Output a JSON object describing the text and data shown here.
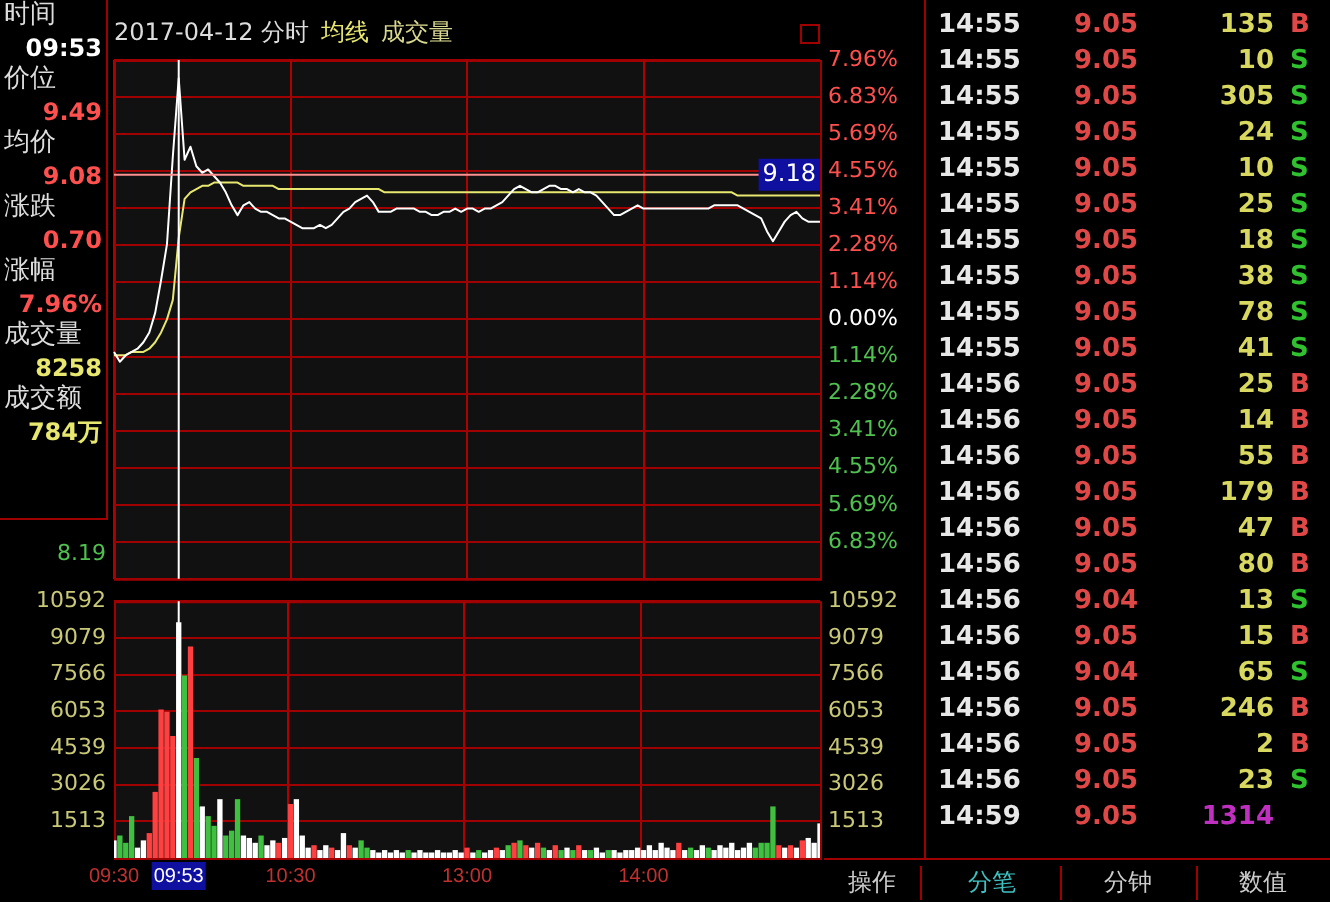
{
  "chart_data": [
    {
      "type": "other",
      "annotations": [
        "时间",
        "09:53",
        "价位",
        "9.49",
        "均价",
        "9.08",
        "涨跌",
        "0.70",
        "涨幅",
        "7.96%",
        "成交量",
        "8258",
        "成交额",
        "784万"
      ]
    },
    {
      "type": "line",
      "title": "2017-04-12 分时",
      "tick_labels": "y",
      "grid": true,
      "categories": [
        "09:30",
        null,
        null,
        null,
        null,
        null,
        null,
        null,
        null,
        null,
        null,
        "09:53",
        null,
        null,
        null,
        null,
        null,
        null,
        null,
        null,
        null,
        null,
        null,
        null,
        null,
        null,
        null,
        null,
        null,
        null,
        "10:30",
        null,
        null,
        null,
        null,
        null,
        null,
        null,
        null,
        null,
        null,
        null,
        null,
        null,
        null,
        null,
        null,
        null,
        null,
        null,
        null,
        null,
        null,
        null,
        null,
        null,
        null,
        null,
        null,
        null,
        "13:00",
        null,
        null,
        null,
        null,
        null,
        null,
        null,
        null,
        null,
        null,
        null,
        null,
        null,
        null,
        null,
        null,
        null,
        null,
        null,
        null,
        null,
        null,
        null,
        null,
        null,
        null,
        null,
        null,
        null,
        "14:00",
        null,
        null,
        null,
        null,
        null,
        null,
        null,
        null,
        null,
        null,
        null,
        null,
        null,
        null,
        null,
        null,
        null,
        null,
        null,
        null,
        null,
        null,
        null,
        null,
        null,
        null,
        null,
        null,
        null,
        null
      ],
      "ylim": [
        -7.96,
        7.96
      ],
      "yticks": [
        {
          "value": 7.96,
          "label": "7.96%"
        },
        {
          "value": 6.83,
          "label": "6.83%"
        },
        {
          "value": 5.69,
          "label": "5.69%"
        },
        {
          "value": 4.55,
          "label": "4.55%"
        },
        {
          "value": 3.41,
          "label": "3.41%"
        },
        {
          "value": 2.28,
          "label": "2.28%"
        },
        {
          "value": 1.14,
          "label": "1.14%"
        },
        {
          "value": 0,
          "label": "0.00%"
        },
        {
          "value": -1.14,
          "label": "1.14%"
        },
        {
          "value": -2.28,
          "label": "2.28%"
        },
        {
          "value": -3.41,
          "label": "3.41%"
        },
        {
          "value": -4.55,
          "label": "4.55%"
        },
        {
          "value": -5.69,
          "label": "5.69%"
        },
        {
          "value": -6.83,
          "label": "6.83%"
        },
        {
          "value": -7.96,
          "label": null
        }
      ],
      "ref_lines": [
        {
          "axis": "y",
          "value": 4.44,
          "color": "#ff9090"
        },
        {
          "axis": "x",
          "value": "09:53",
          "color": "#ffffff"
        }
      ],
      "annotations": [
        "9.18",
        "8.19",
        "成交量"
      ],
      "series": [
        {
          "color": "#ffffff",
          "values": [
            -1.0,
            -1.3,
            -1.1,
            -1.0,
            -0.9,
            -0.7,
            -0.4,
            0.2,
            1.2,
            2.3,
            5.0,
            7.4,
            4.9,
            5.3,
            4.7,
            4.5,
            4.6,
            4.4,
            4.2,
            3.9,
            3.5,
            3.2,
            3.5,
            3.6,
            3.4,
            3.3,
            3.3,
            3.2,
            3.1,
            3.1,
            3.0,
            2.9,
            2.8,
            2.8,
            2.8,
            2.9,
            2.8,
            2.9,
            3.1,
            3.3,
            3.4,
            3.6,
            3.7,
            3.8,
            3.6,
            3.3,
            3.3,
            3.3,
            3.4,
            3.4,
            3.4,
            3.4,
            3.3,
            3.3,
            3.2,
            3.2,
            3.3,
            3.3,
            3.4,
            3.3,
            3.4,
            3.4,
            3.3,
            3.4,
            3.4,
            3.5,
            3.6,
            3.8,
            4.0,
            4.1,
            4.0,
            3.9,
            3.9,
            4.0,
            4.1,
            4.1,
            4.0,
            4.0,
            3.9,
            4.0,
            3.9,
            3.9,
            3.8,
            3.6,
            3.4,
            3.2,
            3.2,
            3.3,
            3.4,
            3.5,
            3.4,
            3.4,
            3.4,
            3.4,
            3.4,
            3.4,
            3.4,
            3.4,
            3.4,
            3.4,
            3.4,
            3.4,
            3.5,
            3.5,
            3.5,
            3.5,
            3.5,
            3.4,
            3.3,
            3.2,
            3.1,
            2.7,
            2.4,
            2.7,
            3.0,
            3.2,
            3.3,
            3.1,
            3.0,
            3.0,
            3.0
          ]
        },
        {
          "name": "均线",
          "color": "#e8e870",
          "values": [
            -1.1,
            -1.1,
            -1.1,
            -1.0,
            -1.0,
            -1.0,
            -0.9,
            -0.7,
            -0.4,
            0.0,
            0.6,
            2.5,
            3.7,
            3.9,
            4.0,
            4.1,
            4.1,
            4.2,
            4.2,
            4.2,
            4.2,
            4.2,
            4.1,
            4.1,
            4.1,
            4.1,
            4.1,
            4.1,
            4.0,
            4.0,
            4.0,
            4.0,
            4.0,
            4.0,
            4.0,
            4.0,
            4.0,
            4.0,
            4.0,
            4.0,
            4.0,
            4.0,
            4.0,
            4.0,
            4.0,
            4.0,
            3.9,
            3.9,
            3.9,
            3.9,
            3.9,
            3.9,
            3.9,
            3.9,
            3.9,
            3.9,
            3.9,
            3.9,
            3.9,
            3.9,
            3.9,
            3.9,
            3.9,
            3.9,
            3.9,
            3.9,
            3.9,
            3.9,
            3.9,
            3.9,
            3.9,
            3.9,
            3.9,
            3.9,
            3.9,
            3.9,
            3.9,
            3.9,
            3.9,
            3.9,
            3.9,
            3.9,
            3.9,
            3.9,
            3.9,
            3.9,
            3.9,
            3.9,
            3.9,
            3.9,
            3.9,
            3.9,
            3.9,
            3.9,
            3.9,
            3.9,
            3.9,
            3.9,
            3.9,
            3.9,
            3.9,
            3.9,
            3.9,
            3.9,
            3.9,
            3.9,
            3.8,
            3.8,
            3.8,
            3.8,
            3.8,
            3.8,
            3.8,
            3.8,
            3.8,
            3.8,
            3.8,
            3.8,
            3.8,
            3.8,
            3.8
          ]
        }
      ]
    },
    {
      "type": "bar",
      "grid": true,
      "categories": [
        "09:30",
        null,
        null,
        null,
        null,
        null,
        null,
        null,
        null,
        null,
        null,
        "09:53",
        null,
        null,
        null,
        null,
        null,
        null,
        null,
        null,
        null,
        null,
        null,
        null,
        null,
        null,
        null,
        null,
        null,
        null,
        "10:30",
        null,
        null,
        null,
        null,
        null,
        null,
        null,
        null,
        null,
        null,
        null,
        null,
        null,
        null,
        null,
        null,
        null,
        null,
        null,
        null,
        null,
        null,
        null,
        null,
        null,
        null,
        null,
        null,
        null,
        "13:00",
        null,
        null,
        null,
        null,
        null,
        null,
        null,
        null,
        null,
        null,
        null,
        null,
        null,
        null,
        null,
        null,
        null,
        null,
        null,
        null,
        null,
        null,
        null,
        null,
        null,
        null,
        null,
        null,
        null,
        "14:00",
        null,
        null,
        null,
        null,
        null,
        null,
        null,
        null,
        null,
        null,
        null,
        null,
        null,
        null,
        null,
        null,
        null,
        null,
        null,
        null,
        null,
        null,
        null,
        null,
        null,
        null,
        null,
        null,
        null,
        null
      ],
      "ylim": [
        0,
        10592
      ],
      "yticks": [
        1513,
        3026,
        4539,
        6053,
        7566,
        9079,
        10592
      ],
      "y2lim": [
        0,
        10592
      ],
      "y2ticks": [
        1513,
        3026,
        4539,
        6053,
        7566,
        9079,
        10592
      ],
      "ref_lines": [
        {
          "axis": "x",
          "value": "09:53",
          "color": "#ffffff"
        }
      ],
      "values": [
        700,
        900,
        600,
        1700,
        400,
        700,
        1000,
        2700,
        6100,
        6000,
        5000,
        9700,
        7500,
        8700,
        4100,
        2100,
        1700,
        1300,
        2400,
        900,
        1100,
        2400,
        900,
        800,
        600,
        900,
        500,
        700,
        600,
        800,
        2200,
        2400,
        900,
        400,
        500,
        300,
        500,
        400,
        300,
        1000,
        500,
        400,
        700,
        400,
        300,
        200,
        300,
        200,
        300,
        200,
        300,
        200,
        300,
        200,
        200,
        300,
        200,
        200,
        300,
        200,
        400,
        200,
        300,
        200,
        300,
        400,
        300,
        500,
        600,
        700,
        500,
        400,
        600,
        400,
        300,
        500,
        300,
        400,
        300,
        500,
        300,
        300,
        400,
        200,
        300,
        300,
        200,
        300,
        300,
        400,
        300,
        500,
        300,
        600,
        400,
        300,
        600,
        300,
        400,
        300,
        500,
        400,
        300,
        500,
        400,
        600,
        300,
        400,
        600,
        400,
        600,
        600,
        2100,
        500,
        400,
        500,
        400,
        700,
        800,
        600,
        1400
      ],
      "colors": [
        "#ffffff",
        "#40c040",
        "#40c040",
        "#40c040",
        "#ffffff",
        "#ffffff",
        "#ff4040",
        "#ff4040",
        "#ff4040",
        "#ff4040",
        "#ff4040",
        "#ffffff",
        "#40c040",
        "#ff4040",
        "#40c040",
        "#ffffff",
        "#40c040",
        "#40c040",
        "#ffffff",
        "#40c040",
        "#40c040",
        "#40c040",
        "#ffffff",
        "#ffffff",
        "#ffffff",
        "#40c040",
        "#ffffff",
        "#ffffff",
        "#ff4040",
        "#ffffff",
        "#ff4040",
        "#ffffff",
        "#ffffff",
        "#ffffff",
        "#ff4040",
        "#ffffff",
        "#ffffff",
        "#ff4040",
        "#ffffff",
        "#ffffff",
        "#ff4040",
        "#ffffff",
        "#40c040",
        "#40c040",
        "#ffffff",
        "#ffffff",
        "#ffffff",
        "#ffffff",
        "#ffffff",
        "#ffffff",
        "#40c040",
        "#ffffff",
        "#ffffff",
        "#ffffff",
        "#ffffff",
        "#ffffff",
        "#ffffff",
        "#ffffff",
        "#ffffff",
        "#ffffff",
        "#ff4040",
        "#ffffff",
        "#40c040",
        "#ffffff",
        "#ffffff",
        "#ff4040",
        "#ffffff",
        "#40c040",
        "#ff4040",
        "#40c040",
        "#ff4040",
        "#ffffff",
        "#ff4040",
        "#40c040",
        "#ffffff",
        "#ff4040",
        "#40c040",
        "#ffffff",
        "#40c040",
        "#ff4040",
        "#ffffff",
        "#40c040",
        "#ffffff",
        "#ffffff",
        "#40c040",
        "#ffffff",
        "#ffffff",
        "#ffffff",
        "#ffffff",
        "#ffffff",
        "#ffffff",
        "#ffffff",
        "#ffffff",
        "#ffffff",
        "#ffffff",
        "#ffffff",
        "#ff4040",
        "#ffffff",
        "#40c040",
        "#ffffff",
        "#ffffff",
        "#40c040",
        "#ffffff",
        "#ffffff",
        "#ffffff",
        "#ffffff",
        "#ffffff",
        "#ffffff",
        "#ffffff",
        "#40c040",
        "#40c040",
        "#40c040",
        "#40c040",
        "#ff4040",
        "#ffffff",
        "#ff4040",
        "#ffffff",
        "#ff4040",
        "#ffffff",
        "#ffffff",
        "#ffffff"
      ]
    },
    {
      "type": "other",
      "data_labels": true,
      "categories": [
        "14:55",
        "14:55",
        "14:55",
        "14:55",
        "14:55",
        "14:55",
        "14:55",
        "14:55",
        "14:55",
        "14:55",
        "14:56",
        "14:56",
        "14:56",
        "14:56",
        "14:56",
        "14:56",
        "14:56",
        "14:56",
        "14:56",
        "14:56",
        "14:56",
        "14:56",
        "14:59"
      ],
      "series": [
        {
          "color": "#e04848",
          "values": [
            9.05,
            9.05,
            9.05,
            9.05,
            9.05,
            9.05,
            9.05,
            9.05,
            9.05,
            9.05,
            9.05,
            9.05,
            9.05,
            9.05,
            9.05,
            9.05,
            9.04,
            9.05,
            9.04,
            9.05,
            9.05,
            9.05,
            9.05
          ]
        },
        {
          "values": [
            135,
            10,
            305,
            24,
            10,
            25,
            18,
            38,
            78,
            41,
            25,
            14,
            55,
            179,
            47,
            80,
            13,
            15,
            65,
            246,
            2,
            23,
            1314
          ],
          "colors": [
            "#d8d860",
            "#d8d860",
            "#d8d860",
            "#d8d860",
            "#d8d860",
            "#d8d860",
            "#d8d860",
            "#d8d860",
            "#d8d860",
            "#d8d860",
            "#d8d860",
            "#d8d860",
            "#d8d860",
            "#d8d860",
            "#d8d860",
            "#d8d860",
            "#d8d860",
            "#d8d860",
            "#d8d860",
            "#d8d860",
            "#d8d860",
            "#d8d860",
            "#c030c0"
          ]
        }
      ],
      "annotations": [
        "B",
        "S",
        "S",
        "S",
        "S",
        "S",
        "S",
        "S",
        "S",
        "S",
        "B",
        "B",
        "B",
        "B",
        "B",
        "B",
        "S",
        "B",
        "S",
        "B",
        "B",
        "S"
      ],
      "colors": [
        "#e04848",
        "#30c030",
        "#30c030",
        "#30c030",
        "#30c030",
        "#30c030",
        "#30c030",
        "#30c030",
        "#30c030",
        "#30c030",
        "#e04848",
        "#e04848",
        "#e04848",
        "#e04848",
        "#e04848",
        "#e04848",
        "#30c030",
        "#e04848",
        "#30c030",
        "#e04848",
        "#e04848",
        "#30c030"
      ]
    },
    {
      "type": "other",
      "annotations": [
        "操作",
        "分笔",
        "分钟",
        "数值"
      ]
    }
  ]
}
